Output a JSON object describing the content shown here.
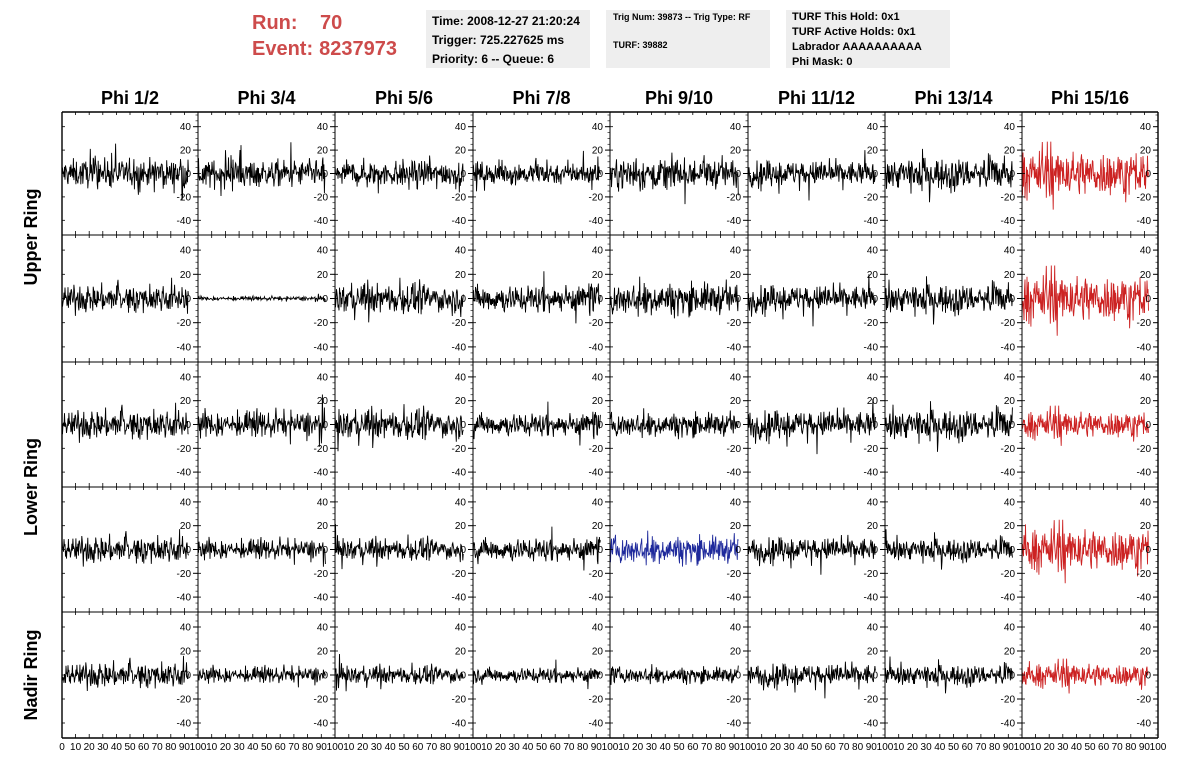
{
  "header": {
    "run_label": "Run:",
    "run_value": "70",
    "event_label": "Event:",
    "event_value": "8237973",
    "colors": {
      "run_text": "#cd4b4b",
      "info_bg": "#eeeeee"
    }
  },
  "info_box_1": {
    "time": "Time: 2008-12-27 21:20:24",
    "trigger": "Trigger: 725.227625 ms",
    "priority": "Priority: 6 -- Queue: 6"
  },
  "info_box_2": {
    "trig": "Trig Num: 39873 -- Trig Type: RF",
    "turf": "TURF: 39882"
  },
  "info_box_3": {
    "this_hold": "TURF This Hold: 0x1",
    "active_holds": "TURF Active Holds: 0x1",
    "labrador": "Labrador AAAAAAAAAA",
    "phi_mask": "Phi Mask: 0"
  },
  "chart_data": {
    "type": "line",
    "columns": [
      "Phi 1/2",
      "Phi 3/4",
      "Phi 5/6",
      "Phi 7/8",
      "Phi 9/10",
      "Phi 11/12",
      "Phi 13/14",
      "Phi 15/16"
    ],
    "row_groups": [
      {
        "label": "Upper Ring",
        "rows": [
          0,
          1
        ]
      },
      {
        "label": "Lower Ring",
        "rows": [
          2,
          3
        ]
      },
      {
        "label": "Nadir Ring",
        "rows": [
          4
        ]
      }
    ],
    "xlim": [
      0,
      100
    ],
    "x_ticks": [
      0,
      10,
      20,
      30,
      40,
      50,
      60,
      70,
      80,
      90,
      100
    ],
    "x_tick_labels": [
      "0",
      "10",
      "20",
      "30",
      "40",
      "50",
      "60",
      "70",
      "80",
      "90",
      "100"
    ],
    "rows": [
      {
        "ylim": [
          -50,
          50
        ],
        "y_ticks": [
          -40,
          -20,
          0,
          20,
          40
        ]
      },
      {
        "ylim": [
          -50,
          50
        ],
        "y_ticks": [
          -40,
          -20,
          0,
          20,
          40
        ]
      },
      {
        "ylim": [
          -50,
          50
        ],
        "y_ticks": [
          -40,
          -20,
          0,
          20,
          40
        ]
      },
      {
        "ylim": [
          -50,
          50
        ],
        "y_ticks": [
          -40,
          -20,
          0,
          20,
          40
        ]
      },
      {
        "ylim": [
          -50,
          50
        ],
        "y_ticks": [
          -40,
          -20,
          0,
          20,
          40
        ]
      }
    ],
    "waveform_samples": 256,
    "waveform_x_range": [
      0,
      93
    ],
    "amplitudes": [
      [
        15,
        14,
        14,
        12,
        16,
        13,
        16,
        24
      ],
      [
        14,
        2,
        15,
        14,
        16,
        13,
        14,
        24
      ],
      [
        15,
        13,
        15,
        12,
        12,
        14,
        15,
        14
      ],
      [
        14,
        10,
        11,
        12,
        14,
        12,
        11,
        22
      ],
      [
        13,
        8,
        9,
        8,
        8,
        11,
        10,
        12
      ]
    ],
    "trace_colors": [
      [
        "#000000",
        "#000000",
        "#000000",
        "#000000",
        "#000000",
        "#000000",
        "#000000",
        "#cc2222"
      ],
      [
        "#000000",
        "#000000",
        "#000000",
        "#000000",
        "#000000",
        "#000000",
        "#000000",
        "#cc2222"
      ],
      [
        "#000000",
        "#000000",
        "#000000",
        "#000000",
        "#000000",
        "#000000",
        "#000000",
        "#cc2222"
      ],
      [
        "#000000",
        "#000000",
        "#000000",
        "#000000",
        "#1f2a9c",
        "#000000",
        "#000000",
        "#cc2222"
      ],
      [
        "#000000",
        "#000000",
        "#000000",
        "#000000",
        "#000000",
        "#000000",
        "#000000",
        "#cc2222"
      ]
    ],
    "grid": false
  }
}
